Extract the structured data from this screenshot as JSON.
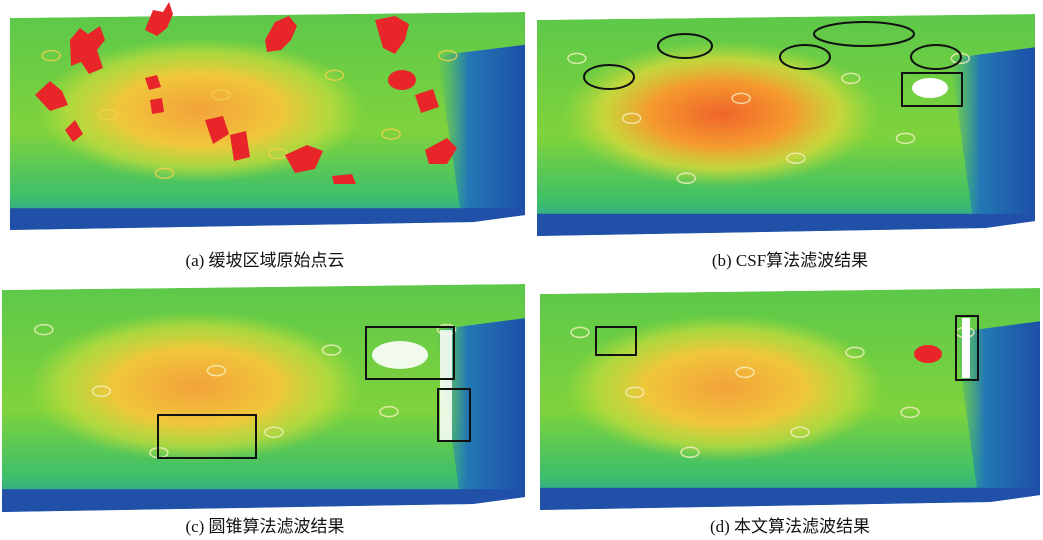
{
  "panels": [
    {
      "caption": "(a) 缓坡区域原始点云"
    },
    {
      "caption": "(b) CSF算法滤波结果"
    },
    {
      "caption": "(c) 圆锥算法滤波结果"
    },
    {
      "caption": "(d) 本文算法滤波结果"
    }
  ]
}
